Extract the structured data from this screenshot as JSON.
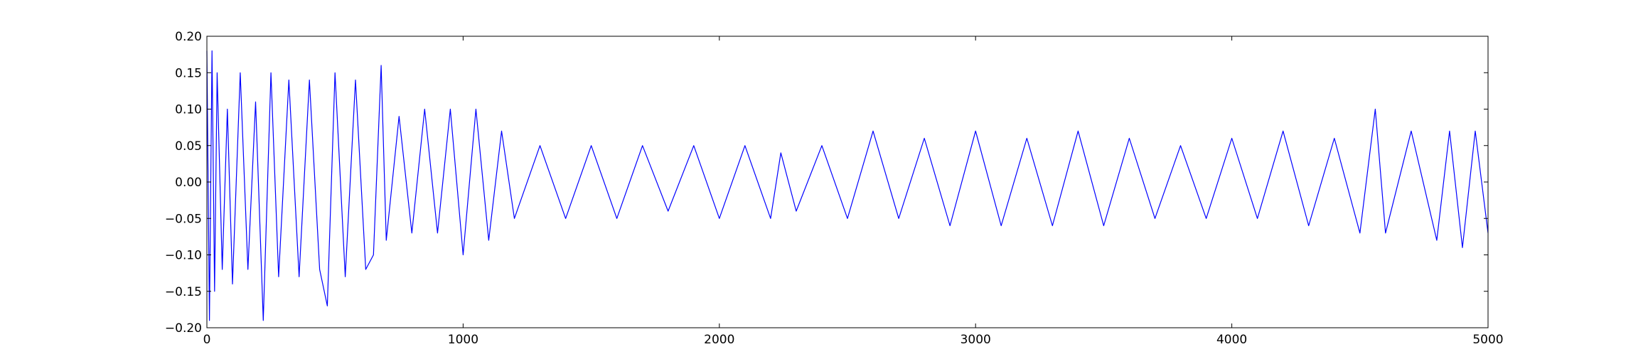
{
  "chart_data": {
    "type": "line",
    "title": "",
    "xlabel": "",
    "ylabel": "",
    "xlim": [
      0,
      5000
    ],
    "ylim": [
      -0.2,
      0.2
    ],
    "x_ticks": [
      0,
      1000,
      2000,
      3000,
      4000,
      5000
    ],
    "x_tick_labels": [
      "0",
      "1000",
      "2000",
      "3000",
      "4000",
      "5000"
    ],
    "y_ticks": [
      -0.2,
      -0.15,
      -0.1,
      -0.05,
      0.0,
      0.05,
      0.1,
      0.15,
      0.2
    ],
    "y_tick_labels": [
      "−0.20",
      "−0.15",
      "−0.10",
      "−0.05",
      "0.00",
      "0.05",
      "0.10",
      "0.15",
      "0.20"
    ],
    "grid": false,
    "legend": "none",
    "series_color": "#0000ff",
    "series": [
      {
        "x": [
          0,
          10,
          20,
          30,
          40,
          60,
          80,
          100,
          130,
          160,
          190,
          220,
          250,
          280,
          320,
          360,
          400,
          440,
          470,
          500,
          540,
          580,
          620,
          650,
          680,
          700,
          750,
          800,
          850,
          900,
          950,
          1000,
          1050,
          1100,
          1150,
          1200,
          1300,
          1400,
          1500,
          1600,
          1700,
          1800,
          1900,
          2000,
          2100,
          2200,
          2240,
          2300,
          2400,
          2500,
          2600,
          2700,
          2800,
          2900,
          3000,
          3100,
          3200,
          3300,
          3400,
          3500,
          3600,
          3700,
          3800,
          3900,
          4000,
          4100,
          4200,
          4300,
          4400,
          4500,
          4560,
          4600,
          4700,
          4800,
          4850,
          4900,
          4950,
          5000
        ],
        "y": [
          0.18,
          -0.19,
          0.18,
          -0.15,
          0.15,
          -0.12,
          0.1,
          -0.14,
          0.15,
          -0.12,
          0.11,
          -0.19,
          0.15,
          -0.13,
          0.14,
          -0.13,
          0.14,
          -0.12,
          -0.17,
          0.15,
          -0.13,
          0.14,
          -0.12,
          -0.1,
          0.16,
          -0.08,
          0.09,
          -0.07,
          0.1,
          -0.07,
          0.1,
          -0.1,
          0.1,
          -0.08,
          0.07,
          -0.05,
          0.05,
          -0.05,
          0.05,
          -0.05,
          0.05,
          -0.04,
          0.05,
          -0.05,
          0.05,
          -0.05,
          0.04,
          -0.04,
          0.05,
          -0.05,
          0.07,
          -0.05,
          0.06,
          -0.06,
          0.07,
          -0.06,
          0.06,
          -0.06,
          0.07,
          -0.06,
          0.06,
          -0.05,
          0.05,
          -0.05,
          0.06,
          -0.05,
          0.07,
          -0.06,
          0.06,
          -0.07,
          0.1,
          -0.07,
          0.07,
          -0.08,
          0.07,
          -0.09,
          0.07,
          -0.07
        ]
      }
    ]
  }
}
